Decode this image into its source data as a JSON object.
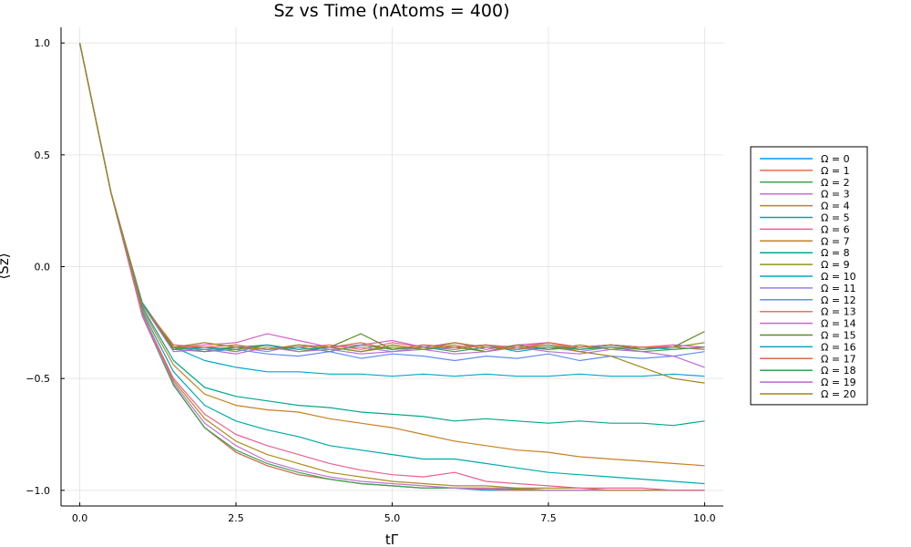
{
  "chart_data": {
    "type": "line",
    "title": "Sz vs Time (nAtoms = 400)",
    "xlabel": "tΓ",
    "ylabel": "⟨Sz⟩",
    "xlim": [
      -0.3,
      10.3
    ],
    "ylim": [
      -1.07,
      1.07
    ],
    "xticks": [
      0.0,
      2.5,
      5.0,
      7.5,
      10.0
    ],
    "xtick_labels": [
      "0.0",
      "2.5",
      "5.0",
      "7.5",
      "10.0"
    ],
    "yticks": [
      -1.0,
      -0.5,
      0.0,
      0.5,
      1.0
    ],
    "ytick_labels": [
      "−1.0",
      "−0.5",
      "0.0",
      "0.5",
      "1.0"
    ],
    "grid": true,
    "legend_position": "right",
    "x": [
      0.0,
      0.5,
      1.0,
      1.5,
      2.0,
      2.5,
      3.0,
      3.5,
      4.0,
      4.5,
      5.0,
      5.5,
      6.0,
      6.5,
      7.0,
      7.5,
      8.0,
      8.5,
      9.0,
      9.5,
      10.0
    ],
    "series": [
      {
        "name": "Ω = 0",
        "color": "#009AFA",
        "values": [
          1.0,
          0.33,
          -0.22,
          -0.53,
          -0.72,
          -0.83,
          -0.89,
          -0.93,
          -0.95,
          -0.97,
          -0.98,
          -0.99,
          -0.99,
          -1.0,
          -1.0,
          -1.0,
          -1.0,
          -1.0,
          -1.0,
          -1.0,
          -1.0
        ]
      },
      {
        "name": "Ω = 1",
        "color": "#E36F47",
        "values": [
          1.0,
          0.33,
          -0.22,
          -0.53,
          -0.72,
          -0.83,
          -0.89,
          -0.93,
          -0.95,
          -0.97,
          -0.98,
          -0.99,
          -0.99,
          -0.995,
          -1.0,
          -1.0,
          -1.0,
          -1.0,
          -1.0,
          -1.0,
          -1.0
        ]
      },
      {
        "name": "Ω = 2",
        "color": "#3EA44E",
        "values": [
          1.0,
          0.33,
          -0.22,
          -0.53,
          -0.72,
          -0.82,
          -0.88,
          -0.92,
          -0.95,
          -0.97,
          -0.98,
          -0.99,
          -0.99,
          -0.99,
          -0.995,
          -1.0,
          -1.0,
          -1.0,
          -1.0,
          -1.0,
          -1.0
        ]
      },
      {
        "name": "Ω = 3",
        "color": "#C271D2",
        "values": [
          1.0,
          0.33,
          -0.22,
          -0.52,
          -0.7,
          -0.8,
          -0.87,
          -0.91,
          -0.94,
          -0.96,
          -0.97,
          -0.98,
          -0.99,
          -0.99,
          -0.99,
          -1.0,
          -1.0,
          -1.0,
          -1.0,
          -1.0,
          -1.0
        ]
      },
      {
        "name": "Ω = 4",
        "color": "#AC8D18",
        "values": [
          1.0,
          0.33,
          -0.21,
          -0.51,
          -0.68,
          -0.78,
          -0.84,
          -0.88,
          -0.92,
          -0.94,
          -0.96,
          -0.97,
          -0.98,
          -0.98,
          -0.99,
          -0.99,
          -0.99,
          -1.0,
          -1.0,
          -1.0,
          -1.0
        ]
      },
      {
        "name": "Ω = 5",
        "color": "#00A9AD",
        "values": [
          1.0,
          0.33,
          -0.2,
          -0.47,
          -0.62,
          -0.69,
          -0.73,
          -0.76,
          -0.8,
          -0.82,
          -0.84,
          -0.86,
          -0.86,
          -0.88,
          -0.9,
          -0.92,
          -0.93,
          -0.94,
          -0.95,
          -0.96,
          -0.97
        ]
      },
      {
        "name": "Ω = 6",
        "color": "#ED5E93",
        "values": [
          1.0,
          0.33,
          -0.21,
          -0.5,
          -0.66,
          -0.75,
          -0.8,
          -0.84,
          -0.88,
          -0.91,
          -0.93,
          -0.94,
          -0.92,
          -0.96,
          -0.97,
          -0.98,
          -0.99,
          -0.99,
          -0.99,
          -1.0,
          -1.0
        ]
      },
      {
        "name": "Ω = 7",
        "color": "#C68125",
        "values": [
          1.0,
          0.33,
          -0.19,
          -0.44,
          -0.57,
          -0.62,
          -0.64,
          -0.65,
          -0.68,
          -0.7,
          -0.72,
          -0.75,
          -0.78,
          -0.8,
          -0.82,
          -0.83,
          -0.85,
          -0.86,
          -0.87,
          -0.88,
          -0.89
        ]
      },
      {
        "name": "Ω = 8",
        "color": "#00A98D",
        "values": [
          1.0,
          0.33,
          -0.18,
          -0.42,
          -0.54,
          -0.58,
          -0.6,
          -0.62,
          -0.63,
          -0.65,
          -0.66,
          -0.67,
          -0.69,
          -0.68,
          -0.69,
          -0.7,
          -0.69,
          -0.7,
          -0.7,
          -0.71,
          -0.69
        ]
      },
      {
        "name": "Ω = 9",
        "color": "#8E971E",
        "values": [
          1.0,
          0.33,
          -0.17,
          -0.37,
          -0.36,
          -0.38,
          -0.35,
          -0.37,
          -0.36,
          -0.38,
          -0.36,
          -0.37,
          -0.35,
          -0.38,
          -0.36,
          -0.37,
          -0.35,
          -0.37,
          -0.36,
          -0.36,
          -0.34
        ]
      },
      {
        "name": "Ω = 10",
        "color": "#00A8CB",
        "values": [
          1.0,
          0.33,
          -0.16,
          -0.36,
          -0.42,
          -0.45,
          -0.47,
          -0.47,
          -0.48,
          -0.48,
          -0.49,
          -0.48,
          -0.49,
          -0.48,
          -0.49,
          -0.49,
          -0.48,
          -0.49,
          -0.49,
          -0.48,
          -0.49
        ]
      },
      {
        "name": "Ω = 11",
        "color": "#9B7FE8",
        "values": [
          1.0,
          0.33,
          -0.17,
          -0.36,
          -0.37,
          -0.36,
          -0.38,
          -0.35,
          -0.37,
          -0.36,
          -0.38,
          -0.36,
          -0.37,
          -0.35,
          -0.37,
          -0.36,
          -0.38,
          -0.36,
          -0.37,
          -0.36,
          -0.37
        ]
      },
      {
        "name": "Ω = 12",
        "color": "#618DF6",
        "values": [
          1.0,
          0.33,
          -0.17,
          -0.37,
          -0.38,
          -0.37,
          -0.39,
          -0.4,
          -0.38,
          -0.41,
          -0.39,
          -0.4,
          -0.42,
          -0.4,
          -0.41,
          -0.39,
          -0.42,
          -0.4,
          -0.41,
          -0.4,
          -0.38
        ]
      },
      {
        "name": "Ω = 13",
        "color": "#F16C6B",
        "values": [
          1.0,
          0.33,
          -0.17,
          -0.36,
          -0.36,
          -0.35,
          -0.37,
          -0.36,
          -0.35,
          -0.37,
          -0.34,
          -0.36,
          -0.37,
          -0.35,
          -0.36,
          -0.34,
          -0.37,
          -0.35,
          -0.36,
          -0.35,
          -0.36
        ]
      },
      {
        "name": "Ω = 14",
        "color": "#D362C5",
        "values": [
          1.0,
          0.33,
          -0.17,
          -0.36,
          -0.35,
          -0.34,
          -0.3,
          -0.33,
          -0.36,
          -0.35,
          -0.33,
          -0.36,
          -0.34,
          -0.37,
          -0.35,
          -0.34,
          -0.36,
          -0.35,
          -0.37,
          -0.35,
          -0.36
        ]
      },
      {
        "name": "Ω = 15",
        "color": "#5B8D26",
        "values": [
          1.0,
          0.33,
          -0.17,
          -0.37,
          -0.36,
          -0.37,
          -0.35,
          -0.38,
          -0.36,
          -0.3,
          -0.37,
          -0.35,
          -0.36,
          -0.38,
          -0.35,
          -0.37,
          -0.36,
          -0.35,
          -0.37,
          -0.36,
          -0.29
        ]
      },
      {
        "name": "Ω = 16",
        "color": "#0FA3C4",
        "values": [
          1.0,
          0.33,
          -0.17,
          -0.36,
          -0.37,
          -0.36,
          -0.35,
          -0.37,
          -0.36,
          -0.38,
          -0.35,
          -0.37,
          -0.36,
          -0.35,
          -0.38,
          -0.36,
          -0.37,
          -0.35,
          -0.36,
          -0.37,
          -0.36
        ]
      },
      {
        "name": "Ω = 17",
        "color": "#DE6A4A",
        "values": [
          1.0,
          0.33,
          -0.17,
          -0.35,
          -0.36,
          -0.35,
          -0.37,
          -0.35,
          -0.36,
          -0.34,
          -0.37,
          -0.35,
          -0.36,
          -0.35,
          -0.37,
          -0.34,
          -0.36,
          -0.35,
          -0.36,
          -0.36,
          -0.37
        ]
      },
      {
        "name": "Ω = 18",
        "color": "#3C9F50",
        "values": [
          1.0,
          0.33,
          -0.17,
          -0.36,
          -0.38,
          -0.36,
          -0.37,
          -0.36,
          -0.38,
          -0.35,
          -0.37,
          -0.36,
          -0.38,
          -0.36,
          -0.37,
          -0.35,
          -0.37,
          -0.36,
          -0.38,
          -0.37,
          -0.36
        ]
      },
      {
        "name": "Ω = 19",
        "color": "#B96BD0",
        "values": [
          1.0,
          0.33,
          -0.17,
          -0.38,
          -0.37,
          -0.39,
          -0.36,
          -0.38,
          -0.37,
          -0.39,
          -0.38,
          -0.37,
          -0.39,
          -0.38,
          -0.36,
          -0.38,
          -0.39,
          -0.37,
          -0.38,
          -0.4,
          -0.45
        ]
      },
      {
        "name": "Ω = 20",
        "color": "#A0871B",
        "values": [
          1.0,
          0.33,
          -0.17,
          -0.36,
          -0.34,
          -0.36,
          -0.37,
          -0.35,
          -0.36,
          -0.38,
          -0.35,
          -0.37,
          -0.34,
          -0.36,
          -0.37,
          -0.35,
          -0.38,
          -0.4,
          -0.45,
          -0.5,
          -0.52
        ]
      }
    ]
  }
}
